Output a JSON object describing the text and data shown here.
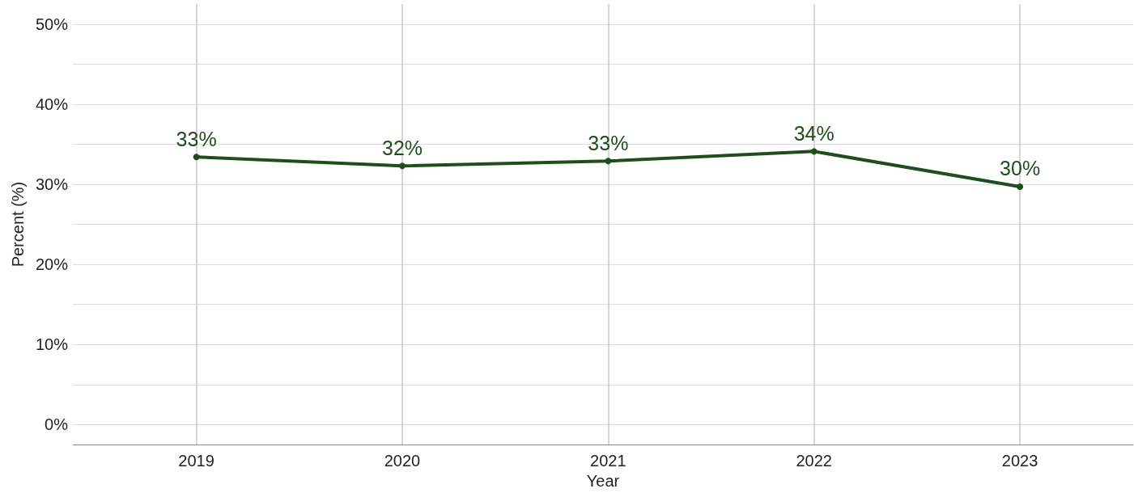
{
  "chart_data": {
    "type": "line",
    "xlabel": "Year",
    "ylabel": "Percent (%)",
    "x": [
      2019,
      2020,
      2021,
      2022,
      2023
    ],
    "series": [
      {
        "color": "#1f4d1f",
        "values": [
          33.4,
          32.3,
          32.9,
          34.1,
          29.7
        ],
        "value_labels": [
          "33%",
          "32%",
          "33%",
          "34%",
          "30%"
        ]
      }
    ],
    "xlim": [
      2018.4,
      2023.55
    ],
    "xticks": [
      2019,
      2020,
      2021,
      2022,
      2023
    ],
    "ylim": [
      -2.5,
      52.5
    ],
    "yticks": [
      {
        "value": 0,
        "label": "0%"
      },
      {
        "value": 5,
        "label": null
      },
      {
        "value": 10,
        "label": "10%"
      },
      {
        "value": 15,
        "label": null
      },
      {
        "value": 20,
        "label": "20%"
      },
      {
        "value": 25,
        "label": null
      },
      {
        "value": 30,
        "label": "30%"
      },
      {
        "value": 35,
        "label": null
      },
      {
        "value": 40,
        "label": "40%"
      },
      {
        "value": 45,
        "label": null
      },
      {
        "value": 50,
        "label": "50%"
      }
    ],
    "grid": true,
    "marker": "circle",
    "line_style": "solid"
  }
}
